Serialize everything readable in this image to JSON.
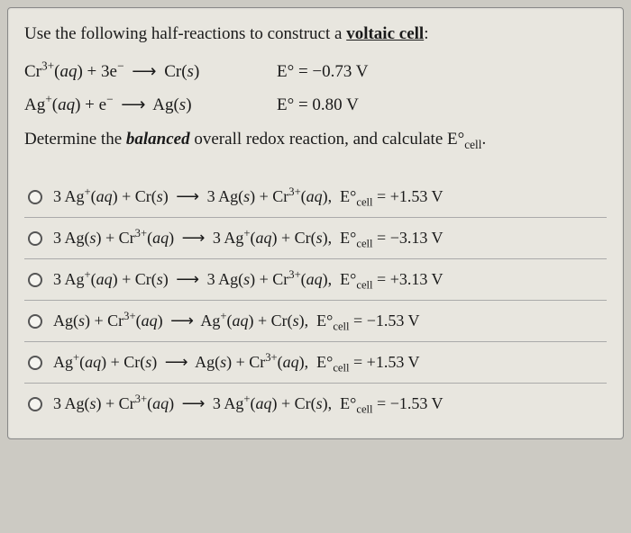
{
  "intro": {
    "prefix": "Use the following half-reactions to construct a ",
    "underline": "voltaic cell",
    "suffix": ":"
  },
  "halfReactions": [
    {
      "lhs": "Cr<sup>3+</sup>(<i>aq</i>) + 3e<sup>−</sup>",
      "rhs": "Cr(<i>s</i>)",
      "potential": "E° = −0.73 V"
    },
    {
      "lhs": "Ag<sup>+</sup>(<i>aq</i>) + e<sup>−</sup>",
      "rhs": "Ag(<i>s</i>)",
      "potential": "E° = 0.80 V"
    }
  ],
  "instruction": {
    "prefix": "Determine the ",
    "emphasis": "balanced",
    "mid": " overall redox reaction, and calculate ",
    "symbol": "E°<sub>cell</sub>."
  },
  "options": [
    {
      "lhs": "3 Ag<sup>+</sup>(<i>aq</i>) + Cr(<i>s</i>)",
      "rhs": "3 Ag(<i>s</i>) + Cr<sup>3+</sup>(<i>aq</i>)",
      "ecell": "E°<sub>cell</sub> = +1.53 V"
    },
    {
      "lhs": "3 Ag(<i>s</i>) + Cr<sup>3+</sup>(<i>aq</i>)",
      "rhs": "3 Ag<sup>+</sup>(<i>aq</i>) + Cr(<i>s</i>)",
      "ecell": "E°<sub>cell</sub> = −3.13 V"
    },
    {
      "lhs": "3 Ag<sup>+</sup>(<i>aq</i>) + Cr(<i>s</i>)",
      "rhs": "3 Ag(<i>s</i>) + Cr<sup>3+</sup>(<i>aq</i>)",
      "ecell": "E°<sub>cell</sub> = +3.13 V"
    },
    {
      "lhs": "Ag(<i>s</i>) + Cr<sup>3+</sup>(<i>aq</i>)",
      "rhs": "Ag<sup>+</sup>(<i>aq</i>) + Cr(<i>s</i>)",
      "ecell": "E°<sub>cell</sub> = −1.53 V"
    },
    {
      "lhs": "Ag<sup>+</sup>(<i>aq</i>) + Cr(<i>s</i>)",
      "rhs": "Ag(<i>s</i>) + Cr<sup>3+</sup>(<i>aq</i>)",
      "ecell": "E°<sub>cell</sub> = +1.53 V"
    },
    {
      "lhs": "3 Ag(<i>s</i>) + Cr<sup>3+</sup>(<i>aq</i>)",
      "rhs": "3 Ag<sup>+</sup>(<i>aq</i>) + Cr(<i>s</i>)",
      "ecell": "E°<sub>cell</sub> = −1.53 V"
    }
  ],
  "colors": {
    "pageBg": "#cccac3",
    "boxBg": "#e8e6df",
    "text": "#1a1a1a",
    "divider": "#aaa"
  },
  "typography": {
    "bodyFontSize": 19,
    "optionFontSize": 18,
    "fontFamily": "Georgia, Times New Roman, serif"
  }
}
